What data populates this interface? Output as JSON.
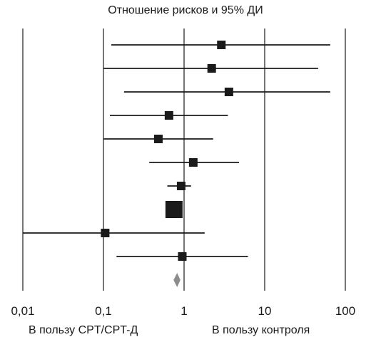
{
  "chart_data": {
    "type": "forest",
    "title": "Отношение рисков и 95% ДИ",
    "x_scale": "log",
    "xlim": [
      0.01,
      100
    ],
    "x_ticks": [
      0.01,
      0.1,
      1,
      10,
      100
    ],
    "x_tick_labels": [
      "0,01",
      "0,1",
      "1",
      "10",
      "100"
    ],
    "reference_line": 1,
    "grid": "vertical lines at each x tick",
    "favors_left_label": "В пользу CPT/CPT-Д",
    "favors_right_label": "В пользу контроля",
    "studies": [
      {
        "estimate": 2.9,
        "ci_low": 0.125,
        "ci_high": 65,
        "weight": 1
      },
      {
        "estimate": 2.2,
        "ci_low": 0.1,
        "ci_high": 46,
        "weight": 1
      },
      {
        "estimate": 3.6,
        "ci_low": 0.18,
        "ci_high": 65,
        "weight": 1
      },
      {
        "estimate": 0.65,
        "ci_low": 0.12,
        "ci_high": 3.5,
        "weight": 1
      },
      {
        "estimate": 0.48,
        "ci_low": 0.1,
        "ci_high": 2.3,
        "weight": 1
      },
      {
        "estimate": 1.3,
        "ci_low": 0.37,
        "ci_high": 4.8,
        "weight": 1
      },
      {
        "estimate": 0.92,
        "ci_low": 0.62,
        "ci_high": 1.22,
        "weight": 1
      },
      {
        "estimate": 0.75,
        "ci_low": 0.62,
        "ci_high": 0.95,
        "weight": 4
      },
      {
        "estimate": 0.105,
        "ci_low": 0.01,
        "ci_high": 1.8,
        "weight": 1
      },
      {
        "estimate": 0.95,
        "ci_low": 0.145,
        "ci_high": 6.2,
        "weight": 1
      }
    ],
    "pooled": {
      "estimate": 0.82,
      "ci_low": 0.74,
      "ci_high": 0.9
    },
    "colors": {
      "lines": "#1a1a1a",
      "markers": "#1a1a1a",
      "pooled": "#8c8c8c"
    }
  }
}
